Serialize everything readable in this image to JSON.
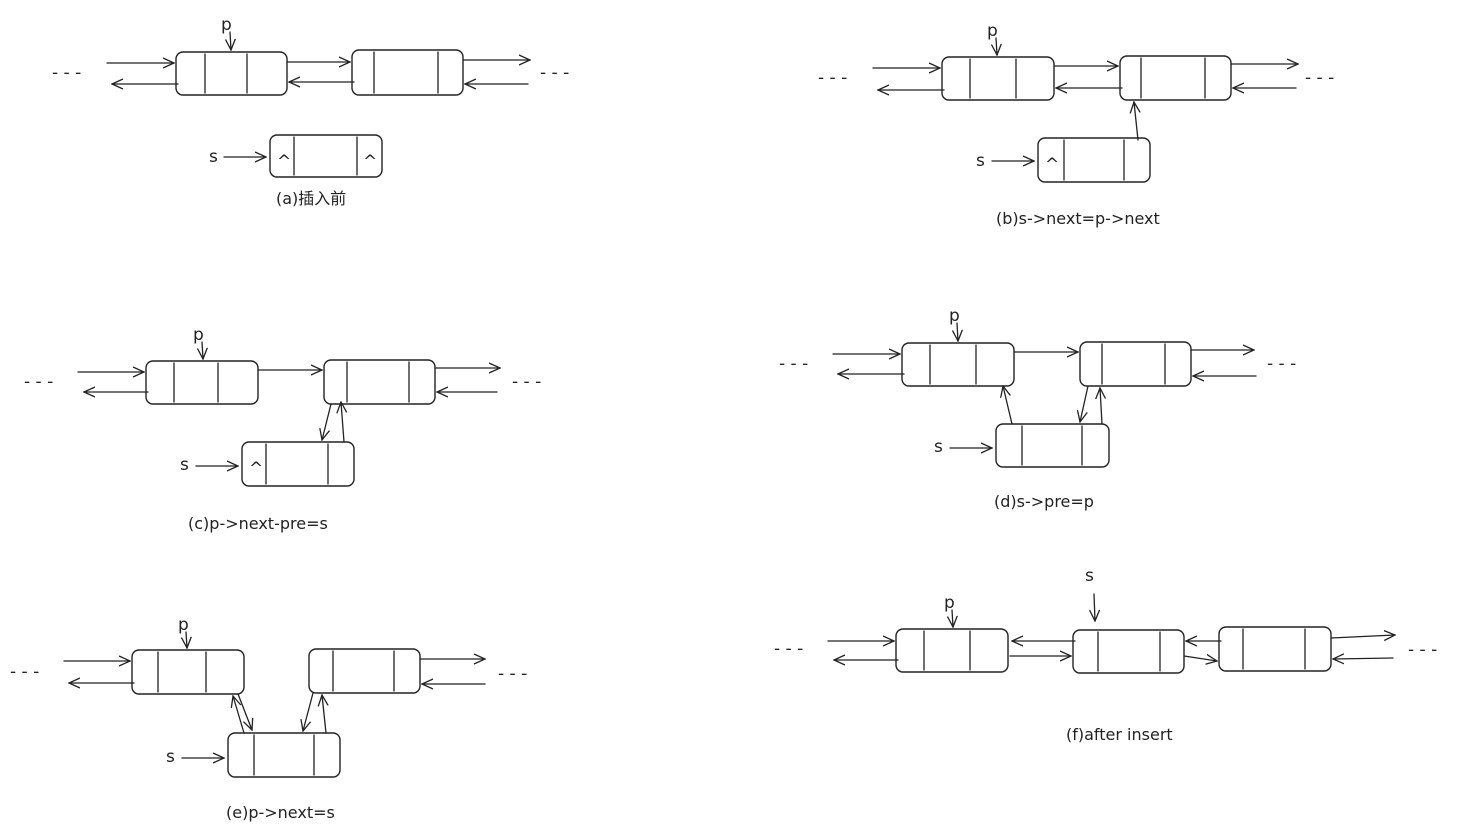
{
  "panels": [
    {
      "id": "a",
      "caption": "(a)插入前",
      "labels": {
        "p": "p",
        "s": "s"
      },
      "s_null": "^",
      "dash": "- - -"
    },
    {
      "id": "b",
      "caption": "(b)s->next=p->next",
      "labels": {
        "p": "p",
        "s": "s"
      },
      "s_null": "^",
      "dash": "- - -"
    },
    {
      "id": "c",
      "caption": "(c)p->next-pre=s",
      "labels": {
        "p": "p",
        "s": "s"
      },
      "s_null": "^",
      "dash": "- - -"
    },
    {
      "id": "d",
      "caption": "(d)s->pre=p",
      "labels": {
        "p": "p",
        "s": "s"
      },
      "dash": "- - -"
    },
    {
      "id": "e",
      "caption": "(e)p->next=s",
      "labels": {
        "p": "p",
        "s": "s"
      },
      "dash": "- - -"
    },
    {
      "id": "f",
      "caption": "(f)after insert",
      "labels": {
        "p": "p",
        "s": "s"
      },
      "dash": "- - -"
    }
  ],
  "colors": {
    "ink": "#222222",
    "background": "#ffffff"
  }
}
